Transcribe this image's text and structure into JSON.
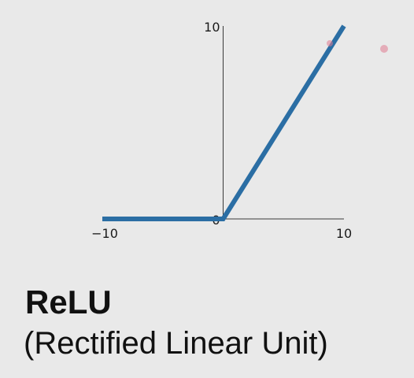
{
  "slide": {
    "title": "ReLU",
    "subtitle": "(Rectified Linear Unit)"
  },
  "chart_data": {
    "type": "line",
    "title": "",
    "xlabel": "",
    "ylabel": "",
    "xlim": [
      -10,
      10
    ],
    "ylim": [
      0,
      10
    ],
    "x_ticks": [
      "−10",
      "10"
    ],
    "y_ticks": [
      "10",
      "0"
    ],
    "grid": false,
    "series": [
      {
        "x": [
          -10,
          0,
          10
        ],
        "y": [
          0,
          0,
          10
        ]
      }
    ]
  },
  "colors": {
    "background": "#e9e9e9",
    "line": "#2b6ea4",
    "axis": "#3a3a3a",
    "pointer": "#e07a8f"
  }
}
